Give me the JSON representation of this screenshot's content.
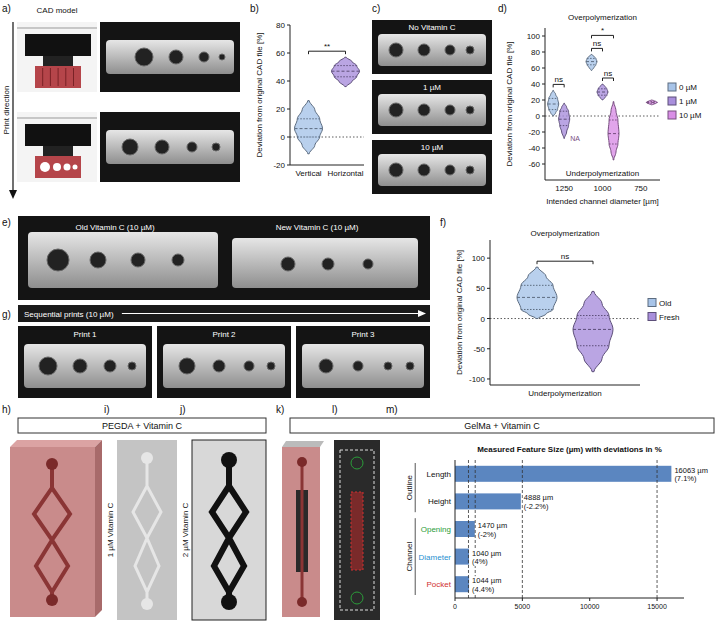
{
  "panels": {
    "a": {
      "letter": "a)",
      "title": "CAD model",
      "arrow_label": "Print direction"
    },
    "b": {
      "letter": "b)"
    },
    "c": {
      "letter": "c)",
      "labels": [
        "No Vitamin C",
        "1 µM",
        "10 µM"
      ]
    },
    "d": {
      "letter": "d)"
    },
    "e": {
      "letter": "e)",
      "labels": [
        "Old Vitamin C (10 µM)",
        "New Vitamin C (10 µM)"
      ]
    },
    "f": {
      "letter": "f)"
    },
    "g": {
      "letter": "g)",
      "title": "Sequential prints (10 µM)",
      "labels": [
        "Print 1",
        "Print 2",
        "Print 3"
      ]
    },
    "h": {
      "letter": "h)"
    },
    "i": {
      "letter": "i)",
      "label": "1 µM Vitamin C"
    },
    "j": {
      "letter": "j)",
      "label": "2 µM Vitamin C"
    },
    "k": {
      "letter": "k)"
    },
    "l": {
      "letter": "l)"
    },
    "m": {
      "letter": "m)"
    }
  },
  "groups": [
    "PEGDA + Vitamin C",
    "GelMa + Vitamin C"
  ],
  "chart_data": [
    {
      "type": "violin",
      "ylabel": "Deviation from original CAD file [%]",
      "categories": [
        "Vertical",
        "Horizontal"
      ],
      "ylim": [
        -20,
        80
      ],
      "yticks": [
        -20,
        0,
        20,
        40,
        60,
        80
      ],
      "series": [
        {
          "colors": [
            "#a8c4e8",
            "#a98fdc"
          ],
          "min": [
            -12,
            36
          ],
          "q1": [
            0,
            43
          ],
          "median": [
            6,
            47
          ],
          "q3": [
            13,
            51
          ],
          "max": [
            26,
            57
          ]
        }
      ],
      "annotations": [
        {
          "text": "**",
          "categories": [
            0,
            1
          ]
        }
      ]
    },
    {
      "type": "violin",
      "xlabel": "Intended channel diameter [µm]",
      "ylabel": "Deviation from original CAD file [%]",
      "categories": [
        "1250",
        "1000",
        "750"
      ],
      "ylim": [
        -80,
        110
      ],
      "yticks": [
        -60,
        -40,
        -20,
        0,
        20,
        40,
        60,
        80,
        100
      ],
      "legend": "right",
      "series": [
        {
          "name": "0 µM",
          "color": "#a8c4e8",
          "min": [
            0,
            57,
            null
          ],
          "q1": [
            8,
            64,
            null
          ],
          "median": [
            15,
            68,
            null
          ],
          "q3": [
            22,
            72,
            null
          ],
          "max": [
            32,
            77,
            null
          ]
        },
        {
          "name": "1 µM",
          "color": "#a98fdc",
          "min": [
            -28,
            20,
            null
          ],
          "q1": [
            -12,
            26,
            null
          ],
          "median": [
            -4,
            30,
            null
          ],
          "q3": [
            6,
            34,
            null
          ],
          "max": [
            16,
            40,
            null
          ]
        },
        {
          "name": "10 µM",
          "color": "#d98ee6",
          "min": [
            null,
            -55,
            14
          ],
          "q1": [
            null,
            -35,
            16
          ],
          "median": [
            null,
            -22,
            17
          ],
          "q3": [
            null,
            -5,
            18
          ],
          "max": [
            null,
            18,
            20
          ]
        }
      ],
      "annotations": [
        {
          "text": "ns",
          "category": 1,
          "series": [
            1,
            2
          ]
        },
        {
          "text": "ns",
          "category": 0,
          "series": [
            0,
            1
          ]
        },
        {
          "text": "ns",
          "category": 1,
          "series": [
            0,
            1
          ]
        },
        {
          "text": "*",
          "category": 1,
          "series": [
            0,
            2
          ]
        }
      ],
      "missing_labels": [
        {
          "text": "NA",
          "category": 0,
          "series": 2
        }
      ],
      "region_labels": [
        "Overpolymerization",
        "Underpolymerization"
      ]
    },
    {
      "type": "violin",
      "ylabel": "Deviation from original CAD file [%]",
      "categories": [
        null
      ],
      "ylim": [
        -110,
        130
      ],
      "yticks": [
        -100,
        -50,
        0,
        50,
        100
      ],
      "legend": "right",
      "series": [
        {
          "name": "Old",
          "color": "#a8c4e8",
          "min": [
            0
          ],
          "q1": [
            15
          ],
          "median": [
            35
          ],
          "q3": [
            55
          ],
          "max": [
            85
          ]
        },
        {
          "name": "Fresh",
          "color": "#a98fdc",
          "min": [
            -88
          ],
          "q1": [
            -45
          ],
          "median": [
            -18
          ],
          "q3": [
            5
          ],
          "max": [
            45
          ]
        }
      ],
      "annotations": [
        {
          "text": "ns",
          "category": 0,
          "series": [
            0,
            1
          ]
        }
      ],
      "region_labels": [
        "Overpolymerization",
        "Underpolymerization"
      ]
    },
    {
      "type": "bar",
      "orientation": "horizontal",
      "title": "Measured Feature Size (µm) with deviations in %",
      "categories": [
        "Length",
        "Height",
        "Opening",
        "Diameter",
        "Pocket"
      ],
      "values": [
        16063,
        4888,
        1470,
        1040,
        1044
      ],
      "value_labels": [
        "16063 µm",
        "4888 µm",
        "1470 µm",
        "1040 µm",
        "1044 µm"
      ],
      "deviation_labels": [
        "(7.1%)",
        "(-2.2%)",
        "(-2%)",
        "(4%)",
        "(4.4%)"
      ],
      "groups": [
        {
          "label": "Outline",
          "count": 2
        },
        {
          "label": "Channel",
          "count": 3
        }
      ],
      "reference_lines": [
        1000,
        1500,
        5000,
        15000
      ],
      "xlim": [
        0,
        17000
      ],
      "xticks": [
        0,
        5000,
        10000,
        15000
      ],
      "color": "#5b86c0",
      "data_labels": true,
      "grid": false
    }
  ]
}
